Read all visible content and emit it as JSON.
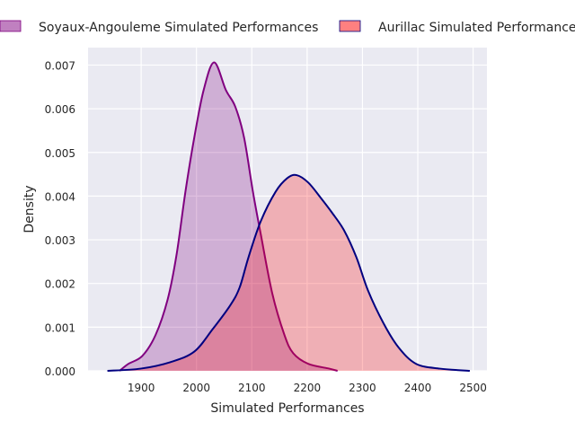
{
  "chart_data": {
    "type": "area",
    "title": "",
    "xlabel": "Simulated Performances",
    "ylabel": "Density",
    "xlim": [
      1804,
      2525
    ],
    "ylim": [
      0,
      0.0074
    ],
    "grid": true,
    "legend_placement": "top",
    "xticks": [
      1900,
      2000,
      2100,
      2200,
      2300,
      2400,
      2500
    ],
    "xtick_labels": [
      "1900",
      "2000",
      "2100",
      "2200",
      "2300",
      "2400",
      "2500"
    ],
    "yticks": [
      0,
      0.001,
      0.002,
      0.003,
      0.004,
      0.005,
      0.006,
      0.007
    ],
    "ytick_labels": [
      "0.000",
      "0.001",
      "0.002",
      "0.003",
      "0.004",
      "0.005",
      "0.006",
      "0.007"
    ],
    "series": [
      {
        "name": "Soyaux-Angouleme Simulated Performances",
        "edge_color": "#800080",
        "fill_color": "#800080",
        "legend_color": "#c080c0",
        "x": [
          1861,
          1877,
          1902,
          1926,
          1948,
          1964,
          1980,
          1996,
          2013,
          2032,
          2053,
          2070,
          2086,
          2102,
          2116,
          2137,
          2159,
          2175,
          2202,
          2240,
          2255
        ],
        "y": [
          0,
          0.00016,
          0.00034,
          0.00082,
          0.00164,
          0.00266,
          0.0041,
          0.00534,
          0.00643,
          0.00706,
          0.00643,
          0.00605,
          0.00534,
          0.0041,
          0.00314,
          0.00177,
          0.00082,
          0.0004,
          0.00016,
          5e-05,
          0
        ]
      },
      {
        "name": "Aurillac Simulated Performances",
        "edge_color": "#000080",
        "fill_color": "#ff0000",
        "legend_color": "#ff8080",
        "x": [
          1839,
          1899,
          1953,
          1996,
          2029,
          2061,
          2078,
          2094,
          2116,
          2143,
          2164,
          2181,
          2202,
          2224,
          2245,
          2267,
          2289,
          2310,
          2338,
          2365,
          2397,
          2440,
          2494
        ],
        "y": [
          0,
          5e-05,
          0.0002,
          0.00044,
          0.00095,
          0.0015,
          0.00191,
          0.0026,
          0.00342,
          0.0041,
          0.00441,
          0.00448,
          0.00431,
          0.00397,
          0.00362,
          0.00321,
          0.0026,
          0.00184,
          0.00109,
          0.00054,
          0.00016,
          5e-05,
          0
        ]
      }
    ]
  }
}
